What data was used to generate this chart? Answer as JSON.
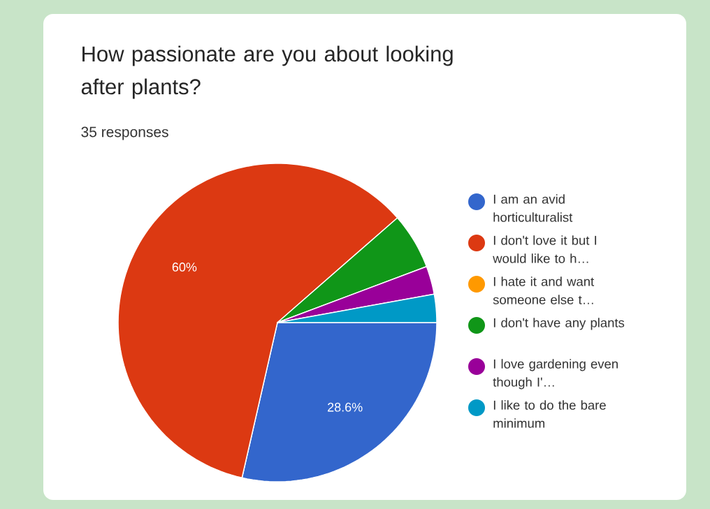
{
  "chart_data": {
    "type": "pie",
    "title": "How passionate are you about looking after plants?",
    "subtitle": "35 responses",
    "categories": [
      "I am an avid horticulturalist",
      "I don't love it but I would like to h…",
      "I hate it and want someone else t…",
      "I don't have any plants",
      "I love gardening even though I'…",
      "I like to do the bare minimum"
    ],
    "values": [
      28.57,
      60,
      0,
      5.71,
      2.86,
      2.86
    ],
    "value_labels": [
      "28.6%",
      "60%",
      null,
      null,
      null,
      null
    ],
    "colors": [
      "#3366cc",
      "#dc3912",
      "#ff9900",
      "#109618",
      "#990099",
      "#0099c6"
    ],
    "legend": "right"
  }
}
